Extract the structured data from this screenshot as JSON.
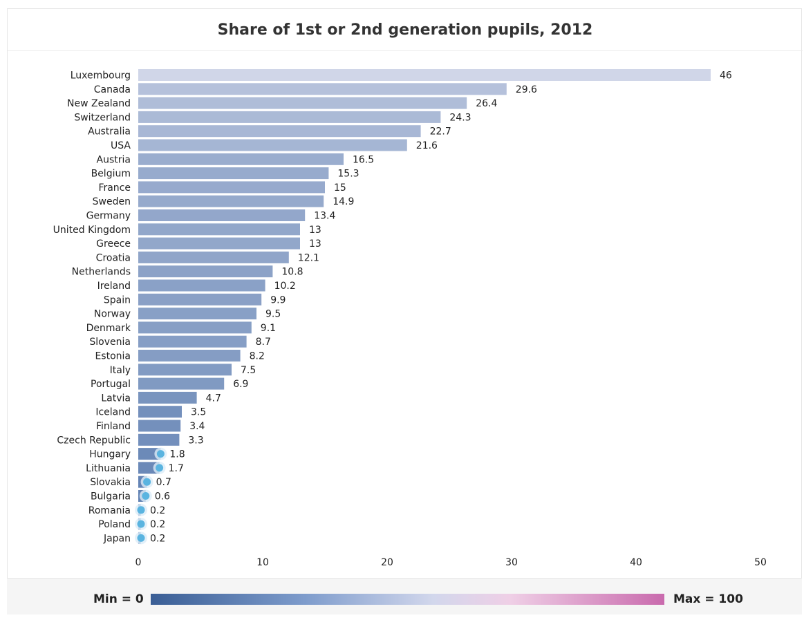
{
  "title": "Share of 1st or 2nd generation pupils, 2012",
  "legend": {
    "min_label": "Min = 0",
    "max_label": "Max = 100"
  },
  "colors": {
    "low": "#5b7db0",
    "high": "#d0d6e8",
    "marker": "#5ab4e0"
  },
  "chart_data": {
    "type": "bar",
    "orientation": "horizontal",
    "title": "Share of 1st or 2nd generation pupils, 2012",
    "xlabel": "",
    "ylabel": "",
    "xlim": [
      0,
      50
    ],
    "xticks": [
      0,
      10,
      20,
      30,
      40,
      50
    ],
    "grid": false,
    "categories": [
      "Luxembourg",
      "Canada",
      "New Zealand",
      "Switzerland",
      "Australia",
      "USA",
      "Austria",
      "Belgium",
      "France",
      "Sweden",
      "Germany",
      "United Kingdom",
      "Greece",
      "Croatia",
      "Netherlands",
      "Ireland",
      "Spain",
      "Norway",
      "Denmark",
      "Slovenia",
      "Estonia",
      "Italy",
      "Portugal",
      "Latvia",
      "Iceland",
      "Finland",
      "Czech Republic",
      "Hungary",
      "Lithuania",
      "Slovakia",
      "Bulgaria",
      "Romania",
      "Poland",
      "Japan"
    ],
    "values": [
      46,
      29.6,
      26.4,
      24.3,
      22.7,
      21.6,
      16.5,
      15.3,
      15,
      14.9,
      13.4,
      13,
      13,
      12.1,
      10.8,
      10.2,
      9.9,
      9.5,
      9.1,
      8.7,
      8.2,
      7.5,
      6.9,
      4.7,
      3.5,
      3.4,
      3.3,
      1.8,
      1.7,
      0.7,
      0.6,
      0.2,
      0.2,
      0.2
    ],
    "value_labels": [
      "46",
      "29.6",
      "26.4",
      "24.3",
      "22.7",
      "21.6",
      "16.5",
      "15.3",
      "15",
      "14.9",
      "13.4",
      "13",
      "13",
      "12.1",
      "10.8",
      "10.2",
      "9.9",
      "9.5",
      "9.1",
      "8.7",
      "8.2",
      "7.5",
      "6.9",
      "4.7",
      "3.5",
      "3.4",
      "3.3",
      "1.8",
      "1.7",
      "0.7",
      "0.6",
      "0.2",
      "0.2",
      "0.2"
    ]
  }
}
